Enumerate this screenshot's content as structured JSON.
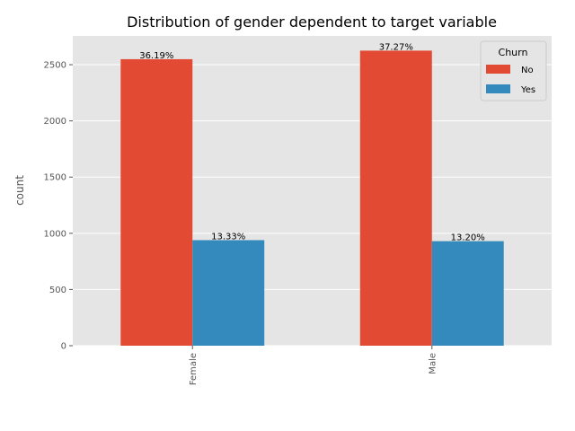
{
  "chart_data": {
    "type": "bar",
    "title": "Distribution of gender dependent to target variable",
    "xlabel": "",
    "ylabel": "count",
    "categories": [
      "Female",
      "Male"
    ],
    "series": [
      {
        "name": "No",
        "color": "#E24A33",
        "values": [
          2549,
          2625
        ],
        "labels": [
          "36.19%",
          "37.27%"
        ]
      },
      {
        "name": "Yes",
        "color": "#348ABD",
        "values": [
          939,
          930
        ],
        "labels": [
          "13.33%",
          "13.20%"
        ]
      }
    ],
    "yticks": [
      0,
      500,
      1000,
      1500,
      2000,
      2500
    ],
    "ylim": [
      0,
      2756
    ],
    "grid": true,
    "legend": {
      "title": "Churn",
      "position": "top-right"
    }
  }
}
